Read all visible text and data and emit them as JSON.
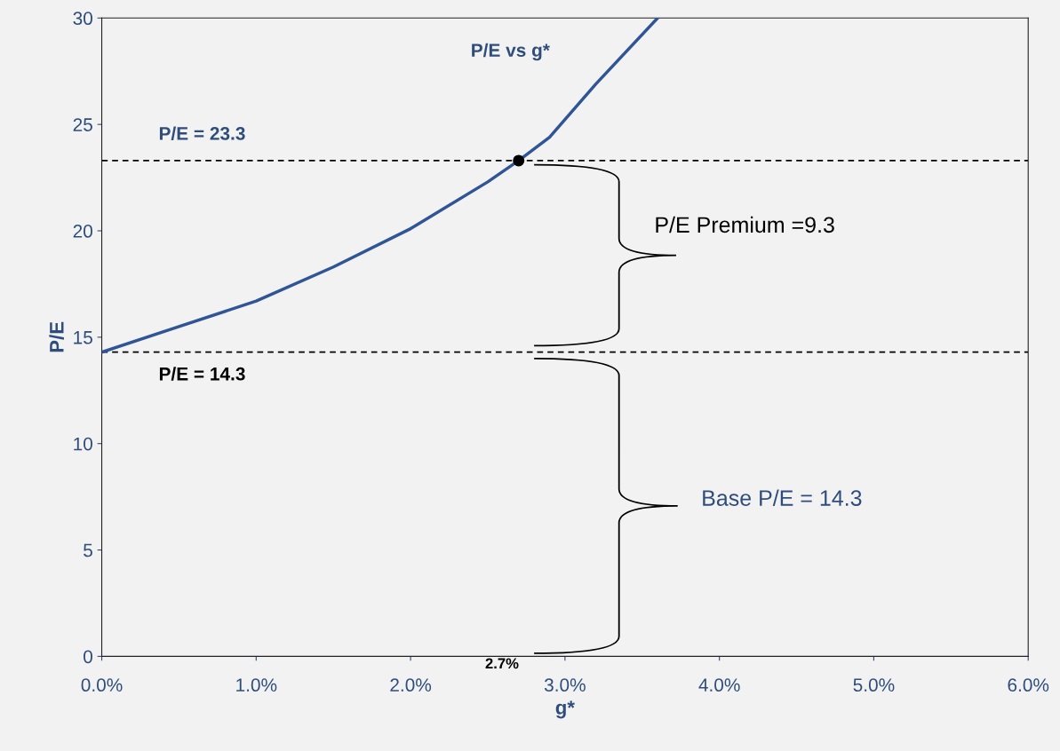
{
  "chart_data": {
    "type": "line",
    "xlabel": "g*",
    "ylabel": "P/E",
    "x": [
      0,
      0.5,
      1.0,
      1.5,
      2.0,
      2.5,
      2.7,
      2.9,
      3.2,
      3.6
    ],
    "series": [
      {
        "color": "#2f5597",
        "values": [
          14.3,
          15.5,
          16.7,
          18.3,
          20.1,
          22.3,
          23.3,
          24.4,
          26.9,
          30
        ]
      },
      {
        "type": "scatter",
        "marker": "circle",
        "color": "#000000",
        "x": [
          2.7
        ],
        "values": [
          23.3
        ]
      }
    ],
    "xlim": [
      0,
      6
    ],
    "ylim": [
      0,
      30
    ],
    "xticks": [
      {
        "value": 0,
        "label": "0.0%"
      },
      {
        "value": 1,
        "label": "1.0%"
      },
      {
        "value": 2,
        "label": "2.0%"
      },
      {
        "value": 3,
        "label": "3.0%"
      },
      {
        "value": 4,
        "label": "4.0%"
      },
      {
        "value": 5,
        "label": "5.0%"
      },
      {
        "value": 6,
        "label": "6.0%"
      }
    ],
    "yticks": [
      0,
      5,
      10,
      15,
      20,
      25,
      30
    ],
    "ref_lines": [
      {
        "axis": "y",
        "value": 23.3,
        "label": "P/E = 23.3",
        "color": "#000000",
        "line_style": "dashed"
      },
      {
        "axis": "y",
        "value": 14.3,
        "label": "P/E = 14.3",
        "color": "#000000",
        "line_style": "dashed"
      }
    ],
    "annotations": [
      "P/E vs g*",
      "P/E Premium =9.3",
      "Base P/E = 14.3",
      "2.7%"
    ],
    "grid": false,
    "line_style": "solid"
  }
}
